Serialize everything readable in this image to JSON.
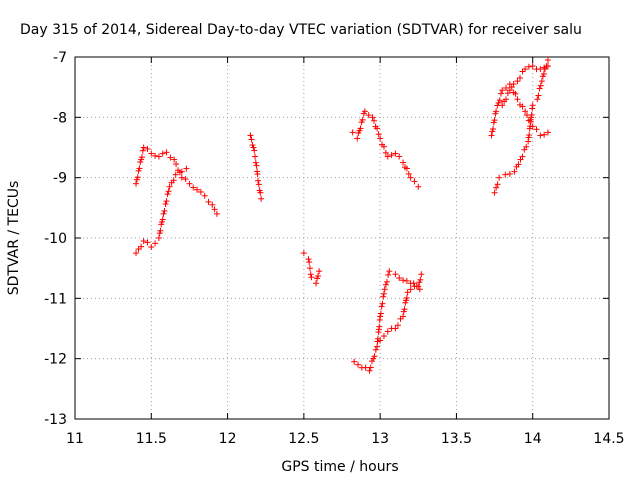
{
  "chart_data": {
    "type": "scatter",
    "title": "Day 315 of 2014, Sidereal Day-to-day VTEC variation (SDTVAR) for receiver salu",
    "xlabel": "GPS time / hours",
    "ylabel": "SDTVAR / TECUs",
    "xlim": [
      11,
      14.5
    ],
    "ylim": [
      -13,
      -7
    ],
    "xticks": [
      "11",
      "11.5",
      "12",
      "12.5",
      "13",
      "13.5",
      "14",
      "14.5"
    ],
    "yticks": [
      "-7",
      "-8",
      "-9",
      "-10",
      "-11",
      "-12",
      "-13"
    ],
    "grid": true,
    "marker": "+",
    "color": "#ff0000",
    "segments": [
      [
        [
          11.4,
          -9.1
        ],
        [
          11.45,
          -8.5
        ],
        [
          11.5,
          -8.6
        ],
        [
          11.55,
          -8.65
        ],
        [
          11.6,
          -8.58
        ],
        [
          11.65,
          -8.7
        ],
        [
          11.7,
          -9.0
        ],
        [
          11.75,
          -9.1
        ],
        [
          11.8,
          -9.2
        ],
        [
          11.85,
          -9.3
        ],
        [
          11.9,
          -9.45
        ],
        [
          11.93,
          -9.6
        ]
      ],
      [
        [
          11.4,
          -10.25
        ],
        [
          11.45,
          -10.05
        ],
        [
          11.5,
          -10.15
        ],
        [
          11.55,
          -10.0
        ],
        [
          11.58,
          -9.6
        ],
        [
          11.62,
          -9.15
        ],
        [
          11.66,
          -8.95
        ],
        [
          11.7,
          -8.9
        ],
        [
          11.73,
          -8.85
        ]
      ],
      [
        [
          12.15,
          -8.3
        ],
        [
          12.17,
          -8.5
        ],
        [
          12.19,
          -8.8
        ],
        [
          12.2,
          -9.05
        ],
        [
          12.22,
          -9.35
        ]
      ],
      [
        [
          12.5,
          -10.25
        ],
        [
          12.53,
          -10.35
        ],
        [
          12.55,
          -10.65
        ],
        [
          12.58,
          -10.75
        ],
        [
          12.6,
          -10.55
        ]
      ],
      [
        [
          12.82,
          -8.25
        ],
        [
          12.85,
          -8.35
        ],
        [
          12.9,
          -7.9
        ],
        [
          12.95,
          -8.0
        ],
        [
          13.0,
          -8.35
        ],
        [
          13.05,
          -8.65
        ],
        [
          13.1,
          -8.6
        ],
        [
          13.15,
          -8.75
        ],
        [
          13.2,
          -9.0
        ],
        [
          13.25,
          -9.15
        ]
      ],
      [
        [
          12.83,
          -12.05
        ],
        [
          12.88,
          -12.15
        ],
        [
          12.93,
          -12.2
        ],
        [
          12.98,
          -11.8
        ],
        [
          13.0,
          -11.3
        ],
        [
          13.03,
          -10.85
        ],
        [
          13.06,
          -10.55
        ],
        [
          13.1,
          -10.6
        ],
        [
          13.15,
          -10.7
        ],
        [
          13.2,
          -10.75
        ],
        [
          13.25,
          -10.8
        ],
        [
          13.27,
          -10.6
        ]
      ],
      [
        [
          13.0,
          -11.7
        ],
        [
          13.05,
          -11.55
        ],
        [
          13.1,
          -11.5
        ],
        [
          13.15,
          -11.3
        ],
        [
          13.18,
          -10.9
        ],
        [
          13.22,
          -10.75
        ],
        [
          13.26,
          -10.85
        ]
      ],
      [
        [
          13.73,
          -8.3
        ],
        [
          13.76,
          -7.9
        ],
        [
          13.8,
          -7.55
        ],
        [
          13.85,
          -7.45
        ],
        [
          13.9,
          -7.7
        ],
        [
          13.95,
          -7.9
        ],
        [
          14.0,
          -8.15
        ],
        [
          14.05,
          -8.3
        ],
        [
          14.1,
          -8.25
        ]
      ],
      [
        [
          13.75,
          -9.25
        ],
        [
          13.78,
          -9.0
        ],
        [
          13.82,
          -8.95
        ],
        [
          13.88,
          -8.9
        ],
        [
          13.92,
          -8.7
        ],
        [
          13.97,
          -8.4
        ],
        [
          14.0,
          -7.8
        ],
        [
          14.03,
          -7.7
        ],
        [
          14.06,
          -7.4
        ],
        [
          14.08,
          -7.2
        ],
        [
          14.1,
          -7.05
        ]
      ],
      [
        [
          13.8,
          -7.8
        ],
        [
          13.85,
          -7.55
        ],
        [
          13.9,
          -7.4
        ],
        [
          13.95,
          -7.2
        ],
        [
          14.0,
          -7.15
        ],
        [
          14.05,
          -7.2
        ],
        [
          14.1,
          -7.15
        ]
      ]
    ]
  }
}
